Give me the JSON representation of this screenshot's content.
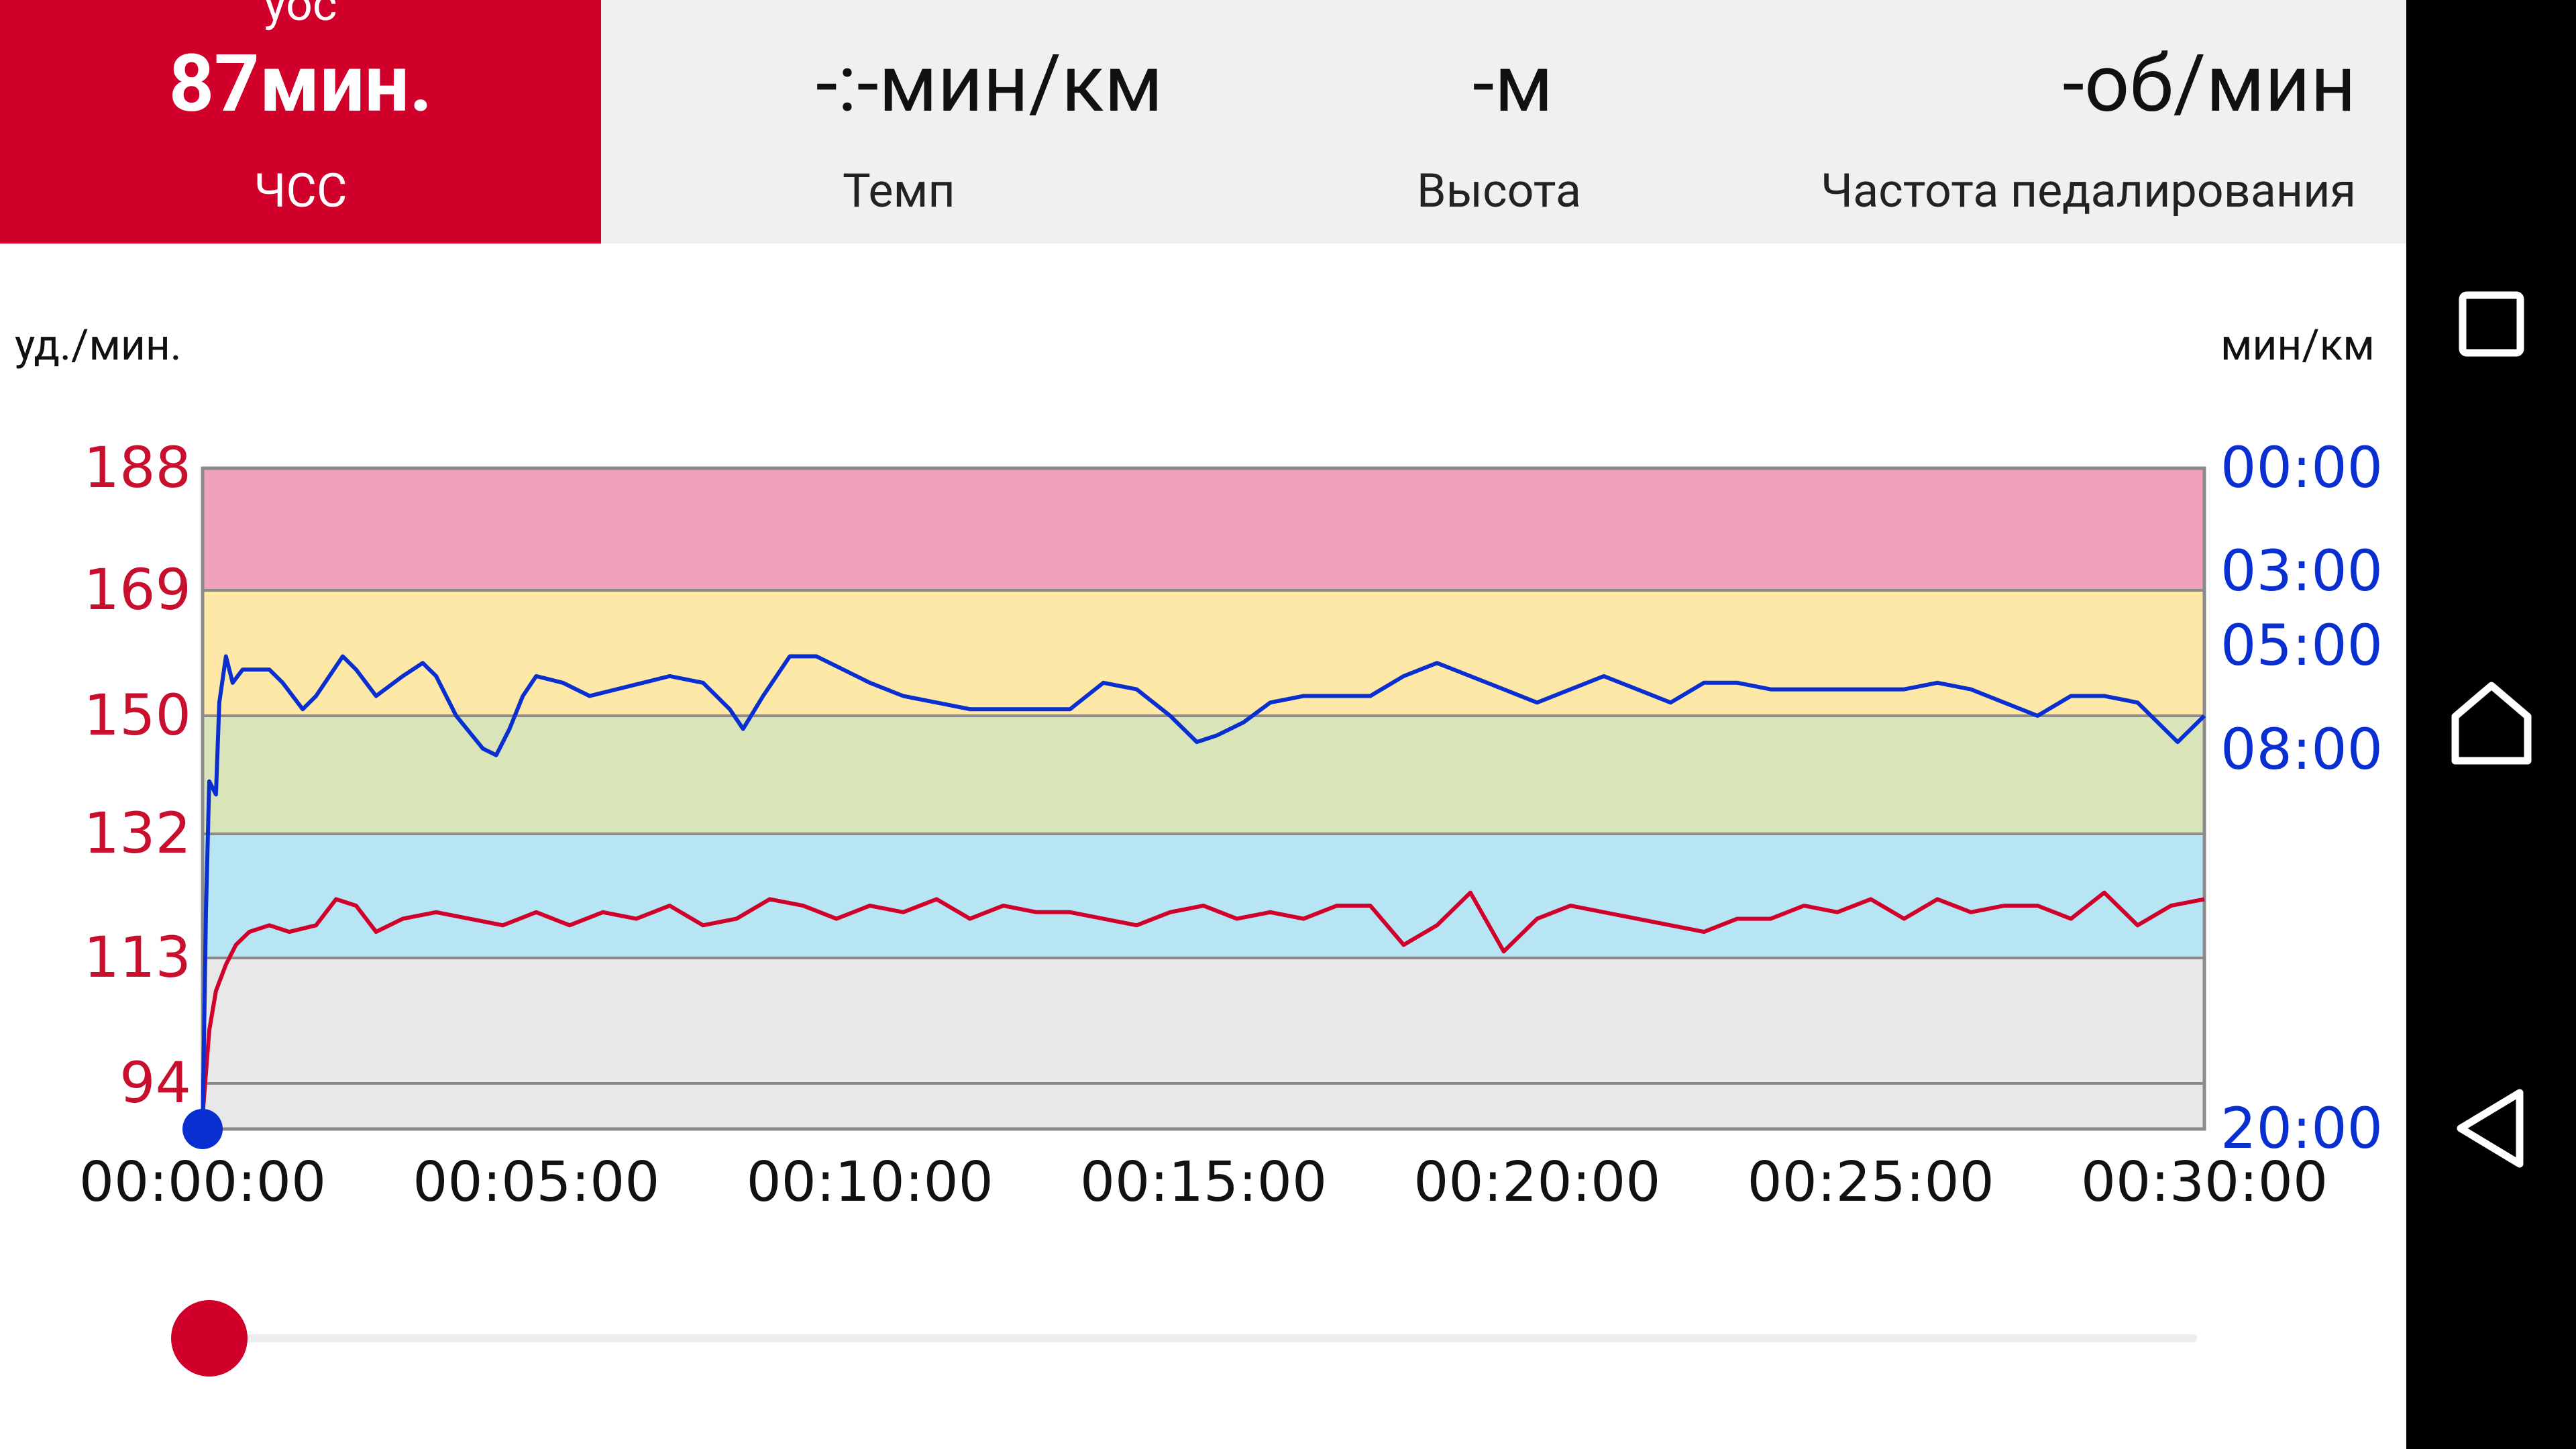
{
  "stats": {
    "hr": {
      "value": "87мин.",
      "label": "ЧСС",
      "clipped_top": "уос"
    },
    "pace": {
      "value": "-:-мин/км",
      "label": "Темп"
    },
    "altitude": {
      "value": "-м",
      "label": "Высота"
    },
    "cadence": {
      "value": "-об/мин",
      "label": "Частота педалирования"
    }
  },
  "units": {
    "left": "уд./мин.",
    "right": "мин/км"
  },
  "navbar": {
    "recents": "recents-square-icon",
    "home": "home-icon",
    "back": "back-triangle-icon"
  },
  "colors": {
    "accent_red": "#d1002a",
    "pace_blue": "#0a2fd0",
    "zone5": "#f0a0bc",
    "zone4": "#fde8a8",
    "zone3": "#d9e4b8",
    "zone2": "#b8e5f4",
    "zone1": "#e8e8e8"
  },
  "chart_data": {
    "type": "line",
    "x_ticks": [
      "00:00:00",
      "00:05:00",
      "00:10:00",
      "00:15:00",
      "00:20:00",
      "00:25:00",
      "00:30:00"
    ],
    "xlim_minutes": [
      0,
      30
    ],
    "y_left": {
      "unit": "уд./мин.",
      "ticks": [
        188,
        169,
        150,
        132,
        113,
        94
      ],
      "range": [
        87,
        188
      ]
    },
    "y_right": {
      "unit": "мин/км",
      "ticks": [
        "00:00",
        "03:00",
        "05:00",
        "08:00",
        "20:00"
      ]
    },
    "zones_bpm": [
      {
        "from": 169,
        "to": 188,
        "color": "#f0a0bc"
      },
      {
        "from": 150,
        "to": 169,
        "color": "#fde8a8"
      },
      {
        "from": 132,
        "to": 150,
        "color": "#d9e4b8"
      },
      {
        "from": 113,
        "to": 132,
        "color": "#b8e5f4"
      },
      {
        "from": 87,
        "to": 113,
        "color": "#e8e8e8"
      }
    ],
    "series": [
      {
        "name": "ЧСС",
        "color": "#d1002a",
        "axis": "left",
        "points": [
          [
            0.0,
            89
          ],
          [
            0.1,
            102
          ],
          [
            0.2,
            108
          ],
          [
            0.35,
            112
          ],
          [
            0.5,
            115
          ],
          [
            0.7,
            117
          ],
          [
            1.0,
            118
          ],
          [
            1.3,
            117
          ],
          [
            1.7,
            118
          ],
          [
            2.0,
            122
          ],
          [
            2.3,
            121
          ],
          [
            2.6,
            117
          ],
          [
            3.0,
            119
          ],
          [
            3.5,
            120
          ],
          [
            4.0,
            119
          ],
          [
            4.5,
            118
          ],
          [
            5.0,
            120
          ],
          [
            5.5,
            118
          ],
          [
            6.0,
            120
          ],
          [
            6.5,
            119
          ],
          [
            7.0,
            121
          ],
          [
            7.5,
            118
          ],
          [
            8.0,
            119
          ],
          [
            8.5,
            122
          ],
          [
            9.0,
            121
          ],
          [
            9.5,
            119
          ],
          [
            10.0,
            121
          ],
          [
            10.5,
            120
          ],
          [
            11.0,
            122
          ],
          [
            11.5,
            119
          ],
          [
            12.0,
            121
          ],
          [
            12.5,
            120
          ],
          [
            13.0,
            120
          ],
          [
            13.5,
            119
          ],
          [
            14.0,
            118
          ],
          [
            14.5,
            120
          ],
          [
            15.0,
            121
          ],
          [
            15.5,
            119
          ],
          [
            16.0,
            120
          ],
          [
            16.5,
            119
          ],
          [
            17.0,
            121
          ],
          [
            17.5,
            121
          ],
          [
            18.0,
            115
          ],
          [
            18.5,
            118
          ],
          [
            19.0,
            123
          ],
          [
            19.5,
            114
          ],
          [
            20.0,
            119
          ],
          [
            20.5,
            121
          ],
          [
            21.0,
            120
          ],
          [
            21.5,
            119
          ],
          [
            22.0,
            118
          ],
          [
            22.5,
            117
          ],
          [
            23.0,
            119
          ],
          [
            23.5,
            119
          ],
          [
            24.0,
            121
          ],
          [
            24.5,
            120
          ],
          [
            25.0,
            122
          ],
          [
            25.5,
            119
          ],
          [
            26.0,
            122
          ],
          [
            26.5,
            120
          ],
          [
            27.0,
            121
          ],
          [
            27.5,
            121
          ],
          [
            28.0,
            119
          ],
          [
            28.5,
            123
          ],
          [
            29.0,
            118
          ],
          [
            29.5,
            121
          ],
          [
            30.0,
            122
          ]
        ]
      },
      {
        "name": "Темп",
        "color": "#0a2fd0",
        "axis": "right",
        "points": [
          [
            0.0,
            87
          ],
          [
            0.05,
            120
          ],
          [
            0.1,
            140
          ],
          [
            0.2,
            138
          ],
          [
            0.25,
            152
          ],
          [
            0.35,
            159
          ],
          [
            0.45,
            155
          ],
          [
            0.6,
            157
          ],
          [
            1.0,
            157
          ],
          [
            1.2,
            155
          ],
          [
            1.5,
            151
          ],
          [
            1.7,
            153
          ],
          [
            2.1,
            159
          ],
          [
            2.3,
            157
          ],
          [
            2.6,
            153
          ],
          [
            3.0,
            156
          ],
          [
            3.3,
            158
          ],
          [
            3.5,
            156
          ],
          [
            3.8,
            150
          ],
          [
            4.2,
            145
          ],
          [
            4.4,
            144
          ],
          [
            4.6,
            148
          ],
          [
            4.8,
            153
          ],
          [
            5.0,
            156
          ],
          [
            5.4,
            155
          ],
          [
            5.8,
            153
          ],
          [
            6.2,
            154
          ],
          [
            6.6,
            155
          ],
          [
            7.0,
            156
          ],
          [
            7.5,
            155
          ],
          [
            7.9,
            151
          ],
          [
            8.1,
            148
          ],
          [
            8.4,
            153
          ],
          [
            8.8,
            159
          ],
          [
            9.2,
            159
          ],
          [
            9.6,
            157
          ],
          [
            10.0,
            155
          ],
          [
            10.5,
            153
          ],
          [
            11.0,
            152
          ],
          [
            11.5,
            151
          ],
          [
            12.0,
            151
          ],
          [
            12.5,
            151
          ],
          [
            13.0,
            151
          ],
          [
            13.5,
            155
          ],
          [
            14.0,
            154
          ],
          [
            14.5,
            150
          ],
          [
            14.9,
            146
          ],
          [
            15.2,
            147
          ],
          [
            15.6,
            149
          ],
          [
            16.0,
            152
          ],
          [
            16.5,
            153
          ],
          [
            17.0,
            153
          ],
          [
            17.5,
            153
          ],
          [
            18.0,
            156
          ],
          [
            18.5,
            158
          ],
          [
            19.0,
            156
          ],
          [
            19.5,
            154
          ],
          [
            20.0,
            152
          ],
          [
            20.5,
            154
          ],
          [
            21.0,
            156
          ],
          [
            21.5,
            154
          ],
          [
            22.0,
            152
          ],
          [
            22.5,
            155
          ],
          [
            23.0,
            155
          ],
          [
            23.5,
            154
          ],
          [
            24.0,
            154
          ],
          [
            24.5,
            154
          ],
          [
            25.0,
            154
          ],
          [
            25.5,
            154
          ],
          [
            26.0,
            155
          ],
          [
            26.5,
            154
          ],
          [
            27.0,
            152
          ],
          [
            27.5,
            150
          ],
          [
            28.0,
            153
          ],
          [
            28.5,
            153
          ],
          [
            29.0,
            152
          ],
          [
            29.3,
            149
          ],
          [
            29.6,
            146
          ],
          [
            30.0,
            150
          ]
        ]
      }
    ]
  }
}
